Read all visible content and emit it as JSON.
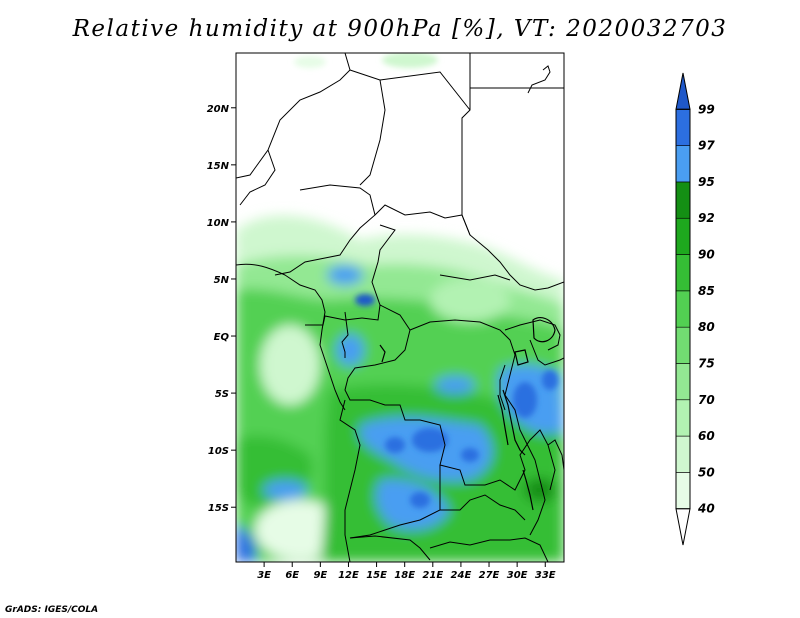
{
  "title": "Relative humidity at 900hPa [%], VT: 2020032703",
  "credit": "GrADS: IGES/COLA",
  "map": {
    "lat_labels": [
      "20N",
      "15N",
      "10N",
      "5N",
      "EQ",
      "5S",
      "10S",
      "15S"
    ],
    "lat_values": [
      20,
      15,
      10,
      5,
      0,
      -5,
      -10,
      -15
    ],
    "lon_labels": [
      "3E",
      "6E",
      "9E",
      "12E",
      "15E",
      "18E",
      "21E",
      "24E",
      "27E",
      "30E",
      "33E"
    ],
    "lon_values": [
      3,
      6,
      9,
      12,
      15,
      18,
      21,
      24,
      27,
      30,
      33
    ],
    "lon_range": [
      0,
      35
    ],
    "lat_range": [
      -19.8,
      24.8
    ]
  },
  "colorbar": {
    "levels": [
      "40",
      "50",
      "60",
      "70",
      "75",
      "80",
      "85",
      "90",
      "92",
      "95",
      "97",
      "99"
    ],
    "colors": [
      "#ffffff",
      "#e6fce6",
      "#cff7cf",
      "#b2f2b2",
      "#93e893",
      "#72dd72",
      "#52d052",
      "#35be35",
      "#1ea81e",
      "#148f14",
      "#4a9ef2",
      "#2c6fe0",
      "#1f58c9"
    ]
  }
}
